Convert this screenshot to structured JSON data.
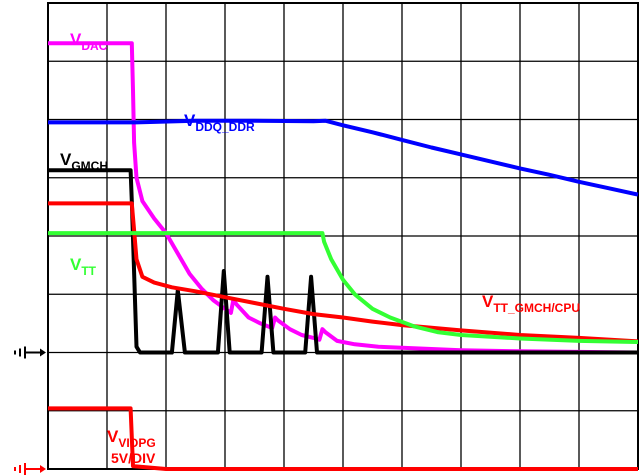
{
  "chart_data": {
    "type": "line",
    "title": "",
    "xlabel": "",
    "ylabel": "",
    "grid": true,
    "grid_divisions": {
      "x": 10,
      "y": 8
    },
    "xlim": [
      0,
      10
    ],
    "ylim": [
      0,
      8
    ],
    "scale_note": "5V/DIV",
    "series": [
      {
        "key": "vdac",
        "label_main": "V",
        "label_sub": "DAC",
        "color": "#ff00ff",
        "points": [
          [
            0,
            7.31
          ],
          [
            1.42,
            7.31
          ],
          [
            1.44,
            6.5
          ],
          [
            1.46,
            5.6
          ],
          [
            1.5,
            5.0
          ],
          [
            1.6,
            4.6
          ],
          [
            1.8,
            4.3
          ],
          [
            2.0,
            4.05
          ],
          [
            2.2,
            3.7
          ],
          [
            2.4,
            3.35
          ],
          [
            2.6,
            3.1
          ],
          [
            2.8,
            2.9
          ],
          [
            3.0,
            2.75
          ],
          [
            3.1,
            2.68
          ],
          [
            3.14,
            2.9
          ],
          [
            3.2,
            2.82
          ],
          [
            3.4,
            2.6
          ],
          [
            3.6,
            2.5
          ],
          [
            3.8,
            2.42
          ],
          [
            3.85,
            2.6
          ],
          [
            3.9,
            2.55
          ],
          [
            4.1,
            2.4
          ],
          [
            4.3,
            2.3
          ],
          [
            4.5,
            2.25
          ],
          [
            4.6,
            2.22
          ],
          [
            4.65,
            2.4
          ],
          [
            4.7,
            2.35
          ],
          [
            4.9,
            2.2
          ],
          [
            5.2,
            2.14
          ],
          [
            5.6,
            2.1
          ],
          [
            6.0,
            2.08
          ],
          [
            7.0,
            2.04
          ],
          [
            8.0,
            2.02
          ],
          [
            10,
            2.0
          ]
        ]
      },
      {
        "key": "vddq",
        "label_main": "V",
        "label_sub": "DDQ_DDR",
        "color": "#0000ff",
        "points": [
          [
            0,
            5.95
          ],
          [
            1.5,
            5.95
          ],
          [
            2.5,
            5.98
          ],
          [
            3.5,
            5.98
          ],
          [
            4.5,
            5.97
          ],
          [
            4.7,
            5.98
          ],
          [
            5.0,
            5.9
          ],
          [
            5.5,
            5.78
          ],
          [
            6.0,
            5.65
          ],
          [
            6.5,
            5.52
          ],
          [
            7.0,
            5.4
          ],
          [
            7.5,
            5.28
          ],
          [
            8.0,
            5.16
          ],
          [
            8.5,
            5.05
          ],
          [
            9.0,
            4.93
          ],
          [
            9.5,
            4.82
          ],
          [
            10,
            4.71
          ]
        ]
      },
      {
        "key": "vgmch",
        "label_main": "V",
        "label_sub": "GMCH",
        "color": "#000000",
        "points": [
          [
            0,
            5.13
          ],
          [
            1.4,
            5.13
          ],
          [
            1.42,
            4.6
          ],
          [
            1.5,
            2.1
          ],
          [
            1.56,
            2.0
          ],
          [
            2.1,
            2.0
          ],
          [
            2.2,
            3.07
          ],
          [
            2.32,
            2.0
          ],
          [
            2.88,
            2.0
          ],
          [
            2.98,
            3.4
          ],
          [
            3.08,
            2.0
          ],
          [
            3.62,
            2.0
          ],
          [
            3.72,
            3.3
          ],
          [
            3.82,
            2.0
          ],
          [
            4.36,
            2.0
          ],
          [
            4.46,
            3.3
          ],
          [
            4.56,
            2.0
          ],
          [
            10,
            2.0
          ]
        ]
      },
      {
        "key": "vtt_gmch_cpu",
        "label_main": "V",
        "label_sub": "TT_GMCH/CPU",
        "color": "#ff0000",
        "points": [
          [
            0,
            4.56
          ],
          [
            1.42,
            4.56
          ],
          [
            1.45,
            4.2
          ],
          [
            1.5,
            3.6
          ],
          [
            1.6,
            3.3
          ],
          [
            1.8,
            3.2
          ],
          [
            2.1,
            3.12
          ],
          [
            2.5,
            3.05
          ],
          [
            3.0,
            2.95
          ],
          [
            3.5,
            2.85
          ],
          [
            4.0,
            2.75
          ],
          [
            4.5,
            2.66
          ],
          [
            5.0,
            2.6
          ],
          [
            5.5,
            2.53
          ],
          [
            6.0,
            2.47
          ],
          [
            7.0,
            2.38
          ],
          [
            8.0,
            2.3
          ],
          [
            9.0,
            2.25
          ],
          [
            10,
            2.19
          ]
        ]
      },
      {
        "key": "vtt",
        "label_main": "V",
        "label_sub": "TT",
        "color": "#33ff33",
        "points": [
          [
            0,
            4.05
          ],
          [
            1.3,
            4.05
          ],
          [
            2.5,
            4.05
          ],
          [
            3.5,
            4.05
          ],
          [
            4.65,
            4.05
          ],
          [
            4.68,
            3.9
          ],
          [
            4.8,
            3.6
          ],
          [
            5.0,
            3.25
          ],
          [
            5.2,
            3.0
          ],
          [
            5.5,
            2.75
          ],
          [
            5.8,
            2.6
          ],
          [
            6.2,
            2.45
          ],
          [
            6.6,
            2.35
          ],
          [
            7.0,
            2.3
          ],
          [
            8.0,
            2.24
          ],
          [
            9.0,
            2.2
          ],
          [
            10,
            2.18
          ]
        ]
      },
      {
        "key": "vvidpg",
        "label_main": "V",
        "label_sub": "VIDPG",
        "color": "#ff0000",
        "points": [
          [
            0,
            1.04
          ],
          [
            1.4,
            1.04
          ],
          [
            1.44,
            0.05
          ],
          [
            2.0,
            0.0
          ],
          [
            10,
            0.0
          ]
        ]
      }
    ],
    "ground_markers": [
      {
        "key": "ground-black",
        "color": "#000000",
        "level": 2.0
      },
      {
        "key": "ground-red",
        "color": "#ff0000",
        "level": 0.0
      }
    ]
  }
}
